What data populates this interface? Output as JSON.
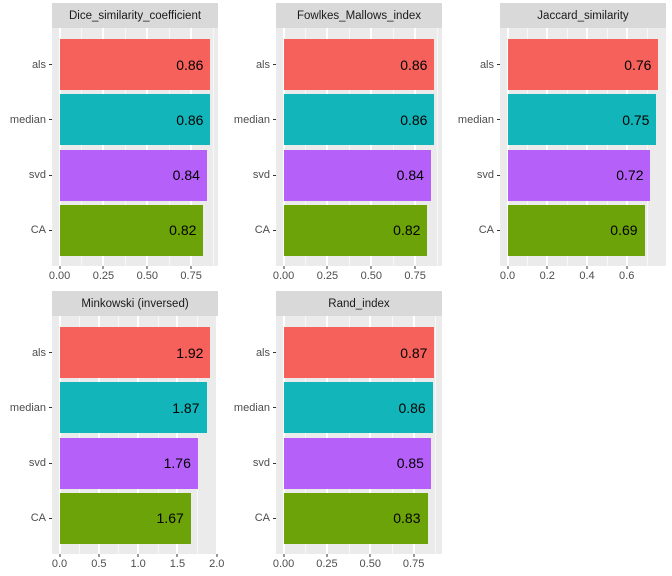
{
  "figure": {
    "description": "Faceted horizontal bar charts comparing clustering methods across similarity metrics",
    "background": "#FFFFFF"
  },
  "styles": {
    "panel_bg": "#EBEBEB",
    "strip_bg": "#D9D9D9",
    "grid_color": "#FFFFFF",
    "axis_text_color": "#4D4D4D",
    "value_text_color": "#000000",
    "tick_mark_color": "#333333"
  },
  "bar_colors": {
    "als": "#F6615B",
    "median": "#12B5B9",
    "svd": "#B660FA",
    "CA": "#6CA308"
  },
  "chart_data": [
    {
      "type": "bar",
      "orientation": "horizontal",
      "title": "Dice_similarity_coefficient",
      "categories": [
        "als",
        "median",
        "svd",
        "CA"
      ],
      "values": [
        0.86,
        0.86,
        0.84,
        0.82
      ],
      "value_labels": [
        "0.86",
        "0.86",
        "0.84",
        "0.82"
      ],
      "ticks": [
        0,
        0.25,
        0.5,
        0.75
      ],
      "tick_labels": [
        "0.00",
        "0.25",
        "0.50",
        "0.75"
      ],
      "minor_ticks": [
        0.125,
        0.375,
        0.625,
        0.875
      ],
      "xlim": [
        0,
        0.9
      ],
      "grid": true,
      "legend": "none"
    },
    {
      "type": "bar",
      "orientation": "horizontal",
      "title": "Fowlkes_Mallows_index",
      "categories": [
        "als",
        "median",
        "svd",
        "CA"
      ],
      "values": [
        0.86,
        0.86,
        0.84,
        0.82
      ],
      "value_labels": [
        "0.86",
        "0.86",
        "0.84",
        "0.82"
      ],
      "ticks": [
        0,
        0.25,
        0.5,
        0.75
      ],
      "tick_labels": [
        "0.00",
        "0.25",
        "0.50",
        "0.75"
      ],
      "minor_ticks": [
        0.125,
        0.375,
        0.625,
        0.875
      ],
      "xlim": [
        0,
        0.9
      ],
      "grid": true,
      "legend": "none"
    },
    {
      "type": "bar",
      "orientation": "horizontal",
      "title": "Jaccard_similarity",
      "categories": [
        "als",
        "median",
        "svd",
        "CA"
      ],
      "values": [
        0.76,
        0.75,
        0.72,
        0.69
      ],
      "value_labels": [
        "0.76",
        "0.75",
        "0.72",
        "0.69"
      ],
      "ticks": [
        0,
        0.2,
        0.4,
        0.6
      ],
      "tick_labels": [
        "0.0",
        "0.2",
        "0.4",
        "0.6"
      ],
      "minor_ticks": [
        0.1,
        0.3,
        0.5,
        0.7
      ],
      "xlim": [
        0,
        0.8
      ],
      "grid": true,
      "legend": "none"
    },
    {
      "type": "bar",
      "orientation": "horizontal",
      "title": "Minkowski (inversed)",
      "categories": [
        "als",
        "median",
        "svd",
        "CA"
      ],
      "values": [
        1.92,
        1.87,
        1.76,
        1.67
      ],
      "value_labels": [
        "1.92",
        "1.87",
        "1.76",
        "1.67"
      ],
      "ticks": [
        0,
        0.5,
        1.0,
        1.5,
        2.0
      ],
      "tick_labels": [
        "0.0",
        "0.5",
        "1.0",
        "1.5",
        "2.0"
      ],
      "minor_ticks": [
        0.25,
        0.75,
        1.25,
        1.75
      ],
      "xlim": [
        0,
        2.02
      ],
      "grid": true,
      "legend": "none"
    },
    {
      "type": "bar",
      "orientation": "horizontal",
      "title": "Rand_index",
      "categories": [
        "als",
        "median",
        "svd",
        "CA"
      ],
      "values": [
        0.87,
        0.86,
        0.85,
        0.83
      ],
      "value_labels": [
        "0.87",
        "0.86",
        "0.85",
        "0.83"
      ],
      "ticks": [
        0,
        0.25,
        0.5,
        0.75
      ],
      "tick_labels": [
        "0.00",
        "0.25",
        "0.50",
        "0.75"
      ],
      "minor_ticks": [
        0.125,
        0.375,
        0.625,
        0.875
      ],
      "xlim": [
        0,
        0.91
      ],
      "grid": true,
      "legend": "none"
    }
  ]
}
